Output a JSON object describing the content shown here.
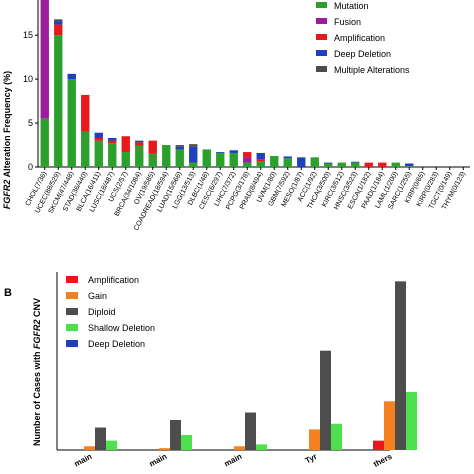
{
  "chart_data": [
    {
      "type": "bar",
      "stacked": true,
      "panel": "",
      "ylabel_italic": "FGFR2",
      "ylabel_rest": " Alteration Frequency (%)",
      "xlabel": "",
      "ylim": [
        0,
        19
      ],
      "yticks": [
        0,
        5,
        10,
        15
      ],
      "grid": false,
      "legend_position": "top-right",
      "categories": [
        "CHOL(7/36)",
        "UCEC(88/529)",
        "SKCM(47/448)",
        "STAD(36/440)",
        "BLCA(16/411)",
        "LUSC(18/487)",
        "UCS(2/57)",
        "BRCA(34/1084)",
        "OV(19/585)",
        "COADREAD(18/594)",
        "LUAD(15/566)",
        "LGG(13/513)",
        "DLBC(1/48)",
        "CESC(6/297)",
        "LIHC(7/372)",
        "PCPG(3/178)",
        "PRAD(8/494)",
        "UVM(1/80)",
        "GBM(7/592)",
        "MESO(1/87)",
        "ACC(1/92)",
        "THCA(3/500)",
        "KIRC(3/512)",
        "HNSC(3/523)",
        "ESCA(1/182)",
        "PAAD(1/184)",
        "LAML(1/200)",
        "SARC(1/255)",
        "KIRP(0/65)",
        "KIRP(0/283)",
        "TGCT(0/149)",
        "THYM(0/123)"
      ],
      "series": [
        {
          "name": "Mutation",
          "color": "#2ca02c",
          "values": [
            5.5,
            15.0,
            10.0,
            4.0,
            3.0,
            2.7,
            1.7,
            2.4,
            1.5,
            2.5,
            2.0,
            0.5,
            2.0,
            1.6,
            1.6,
            0.5,
            0.6,
            1.25,
            1.0,
            0.0,
            1.1,
            0.4,
            0.5,
            0.5,
            0.0,
            0.0,
            0.5,
            0.1,
            0,
            0,
            0,
            0
          ]
        },
        {
          "name": "Fusion",
          "color": "#9c1d9c",
          "values": [
            14.0,
            0.0,
            0.0,
            0.0,
            0.0,
            0.0,
            0.0,
            0.0,
            0.0,
            0.0,
            0.0,
            0.0,
            0.0,
            0.0,
            0.0,
            0.6,
            0.0,
            0.0,
            0.0,
            0.0,
            0.0,
            0.0,
            0.0,
            0.0,
            0.0,
            0.0,
            0.0,
            0.0,
            0,
            0,
            0,
            0
          ]
        },
        {
          "name": "Amplification",
          "color": "#e8191b",
          "values": [
            0.0,
            1.2,
            0.0,
            4.2,
            0.3,
            0.3,
            1.8,
            0.4,
            1.5,
            0.0,
            0.0,
            0.0,
            0.0,
            0.0,
            0.0,
            0.6,
            0.3,
            0.0,
            0.0,
            0.0,
            0.0,
            0.0,
            0.0,
            0.0,
            0.5,
            0.5,
            0.0,
            0.0,
            0,
            0,
            0,
            0
          ]
        },
        {
          "name": "Deep Deletion",
          "color": "#1f3fbf",
          "values": [
            0.0,
            0.4,
            0.6,
            0.0,
            0.6,
            0.3,
            0.0,
            0.1,
            0.0,
            0.0,
            0.3,
            1.8,
            0.0,
            0.1,
            0.3,
            0.0,
            0.7,
            0.0,
            0.2,
            1.1,
            0.0,
            0.1,
            0.0,
            0.1,
            0.0,
            0.0,
            0.0,
            0.3,
            0,
            0,
            0,
            0
          ]
        },
        {
          "name": "Multiple Alterations",
          "color": "#4d4d4d",
          "values": [
            0.0,
            0.2,
            0.0,
            0.0,
            0.0,
            0.0,
            0.0,
            0.1,
            0.0,
            0.0,
            0.2,
            0.3,
            0.0,
            0.0,
            0.0,
            0.0,
            0.0,
            0.0,
            0.0,
            0.0,
            0.0,
            0.0,
            0.0,
            0.0,
            0.0,
            0.0,
            0.0,
            0.0,
            0,
            0,
            0,
            0
          ]
        }
      ]
    },
    {
      "type": "bar",
      "stacked": false,
      "panel": "B",
      "ylabel_prefix": "Number of Cases with ",
      "ylabel_italic": "FGFR2",
      "ylabel_suffix": " CNV",
      "xlabel": "",
      "ylim": [
        0,
        95
      ],
      "grid": false,
      "legend_position": "top-left",
      "categories": [
        "...main",
        "...main",
        "...main",
        "...Tyr",
        "...thers"
      ],
      "category_labels": [
        "main",
        "main",
        "main",
        "Tyr",
        "thers"
      ],
      "series": [
        {
          "name": "Amplification",
          "color": "#e8191b",
          "values": [
            0,
            0,
            0,
            0,
            5
          ]
        },
        {
          "name": "Gain",
          "color": "#f58220",
          "values": [
            2,
            1,
            2,
            11,
            26
          ]
        },
        {
          "name": "Diploid",
          "color": "#4d4d4d",
          "values": [
            12,
            16,
            20,
            53,
            90
          ]
        },
        {
          "name": "Shallow Deletion",
          "color": "#4ee04e",
          "values": [
            5,
            8,
            3,
            14,
            31
          ]
        },
        {
          "name": "Deep Deletion",
          "color": "#1f3fbf",
          "values": [
            0,
            0,
            0,
            0,
            0
          ]
        }
      ]
    }
  ]
}
